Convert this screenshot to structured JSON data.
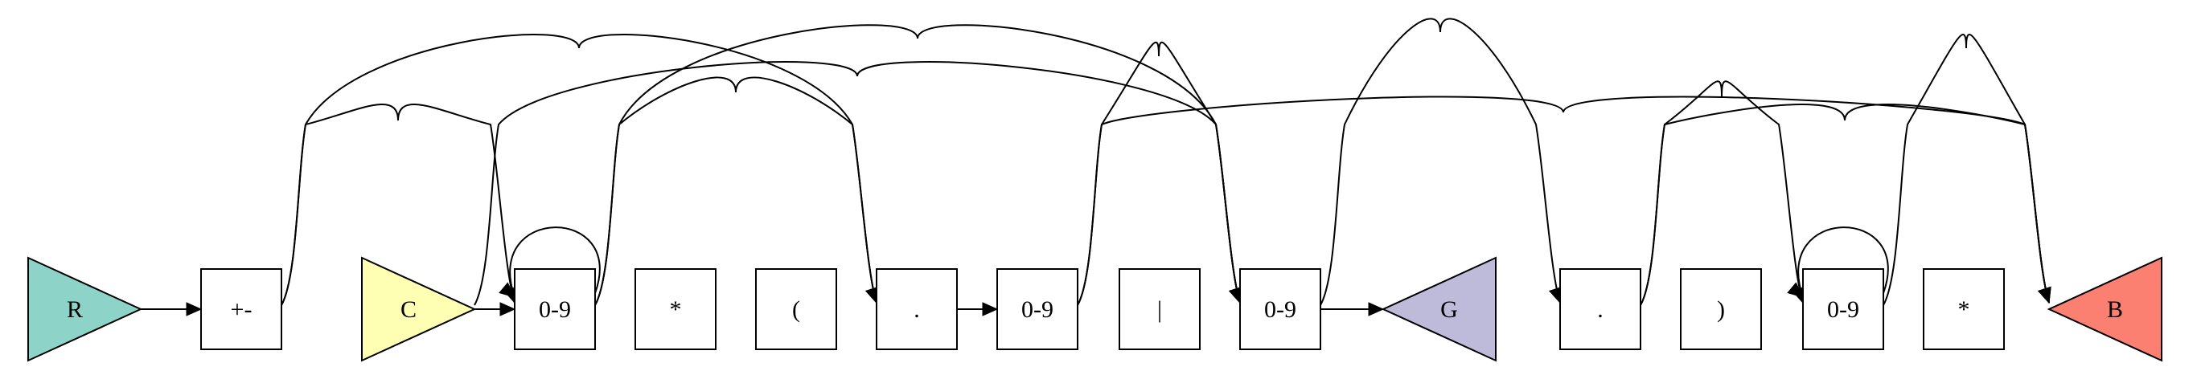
{
  "nodes": [
    {
      "id": "r",
      "shape": "triangle-right",
      "label": "R",
      "fill": "#8dd3c7"
    },
    {
      "id": "plusminus",
      "shape": "box",
      "label": "+-"
    },
    {
      "id": "c",
      "shape": "triangle-right",
      "label": "C",
      "fill": "#ffffb3"
    },
    {
      "id": "digits-1",
      "shape": "box",
      "label": "0-9"
    },
    {
      "id": "star-1",
      "shape": "box",
      "label": "*"
    },
    {
      "id": "lparen",
      "shape": "box",
      "label": "("
    },
    {
      "id": "dot-1",
      "shape": "box",
      "label": "."
    },
    {
      "id": "digits-2",
      "shape": "box",
      "label": "0-9"
    },
    {
      "id": "pipe",
      "shape": "box",
      "label": "|"
    },
    {
      "id": "digits-3",
      "shape": "box",
      "label": "0-9"
    },
    {
      "id": "g",
      "shape": "triangle-left",
      "label": "G",
      "fill": "#bebada"
    },
    {
      "id": "dot-2",
      "shape": "box",
      "label": "."
    },
    {
      "id": "rparen",
      "shape": "box",
      "label": ")"
    },
    {
      "id": "digits-4",
      "shape": "box",
      "label": "0-9"
    },
    {
      "id": "star-2",
      "shape": "box",
      "label": "*"
    },
    {
      "id": "b",
      "shape": "triangle-left",
      "label": "B",
      "fill": "#fb8072"
    }
  ],
  "edges": [
    {
      "from": "r",
      "to": "plusminus"
    },
    {
      "from": "plusminus",
      "to": "digits-1"
    },
    {
      "from": "plusminus",
      "to": "dot-1"
    },
    {
      "from": "c",
      "to": "digits-1"
    },
    {
      "from": "digits-1",
      "to": "digits-1"
    },
    {
      "from": "digits-1",
      "to": "dot-1"
    },
    {
      "from": "digits-1",
      "to": "digits-3"
    },
    {
      "from": "c",
      "to": "digits-3"
    },
    {
      "from": "dot-1",
      "to": "digits-2"
    },
    {
      "from": "digits-2",
      "to": "digits-3"
    },
    {
      "from": "digits-2",
      "to": "b"
    },
    {
      "from": "digits-3",
      "to": "g"
    },
    {
      "from": "digits-3",
      "to": "dot-2"
    },
    {
      "from": "dot-2",
      "to": "digits-4"
    },
    {
      "from": "dot-2",
      "to": "b"
    },
    {
      "from": "digits-4",
      "to": "digits-4"
    },
    {
      "from": "digits-4",
      "to": "b"
    }
  ]
}
